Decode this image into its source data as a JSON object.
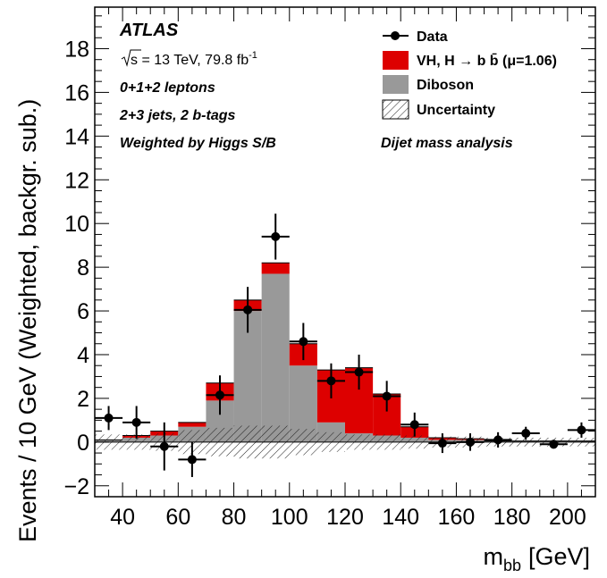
{
  "chart_data": {
    "type": "bar",
    "xlabel": "m",
    "xlabel_sub": "bb",
    "xlabel_unit": "[GeV]",
    "ylabel": "Events / 10 GeV (Weighted, backgr. sub.)",
    "xlim": [
      30,
      210
    ],
    "ylim": [
      -2.5,
      19.9
    ],
    "x_ticks": [
      40,
      60,
      80,
      100,
      120,
      140,
      160,
      180,
      200
    ],
    "y_ticks": [
      -2,
      0,
      2,
      4,
      6,
      8,
      10,
      12,
      14,
      16,
      18
    ],
    "y_tick_labels": [
      "−2",
      "0",
      "2",
      "4",
      "6",
      "8",
      "10",
      "12",
      "14",
      "16",
      "18"
    ],
    "bin_edges": [
      30,
      40,
      50,
      60,
      70,
      80,
      90,
      100,
      110,
      120,
      130,
      140,
      150,
      160,
      170,
      180,
      190,
      200,
      210
    ],
    "series": [
      {
        "name": "Diboson",
        "color": "#999999",
        "values": [
          0.1,
          0.2,
          0.3,
          0.7,
          1.9,
          6.0,
          7.7,
          3.5,
          0.9,
          0.4,
          0.3,
          0.2,
          0.1,
          0.1,
          0.05,
          0.05,
          0.05,
          0.05
        ]
      },
      {
        "name": "VH, H → bb̄ (μ=1.06)",
        "color": "#dd0000",
        "values": [
          0.0,
          0.1,
          0.2,
          0.2,
          0.8,
          0.5,
          0.5,
          1.0,
          2.4,
          3.0,
          1.9,
          0.5,
          0.1,
          0.05,
          0.0,
          0.0,
          0.0,
          0.0
        ]
      }
    ],
    "uncertainty": {
      "name": "Uncertainty",
      "values": [
        0.35,
        0.35,
        0.4,
        0.55,
        0.65,
        0.75,
        0.75,
        0.6,
        0.45,
        0.35,
        0.35,
        0.3,
        0.25,
        0.25,
        0.2,
        0.2,
        0.2,
        0.2
      ]
    },
    "data": {
      "name": "Data",
      "x": [
        35,
        45,
        55,
        65,
        75,
        85,
        95,
        105,
        115,
        125,
        135,
        145,
        155,
        165,
        175,
        185,
        195,
        205
      ],
      "y": [
        1.1,
        0.9,
        -0.2,
        -0.8,
        2.15,
        6.05,
        9.4,
        4.6,
        2.8,
        3.2,
        2.1,
        0.8,
        -0.05,
        0.0,
        0.1,
        0.4,
        -0.1,
        0.55
      ],
      "err": [
        0.55,
        0.75,
        1.1,
        0.8,
        0.9,
        1.05,
        1.05,
        0.85,
        0.8,
        0.8,
        0.7,
        0.55,
        0.45,
        0.4,
        0.35,
        0.3,
        0.2,
        0.35
      ]
    },
    "annotations": {
      "experiment": "ATLAS",
      "energy_prefix": "s",
      "energy_text": " = 13 TeV, 79.8 fb",
      "energy_sup": "-1",
      "line3": "0+1+2 leptons",
      "line4": "2+3 jets, 2 b-tags",
      "line5": "Weighted by Higgs S/B",
      "analysis": "Dijet mass analysis"
    },
    "legend": {
      "placement": "top-right",
      "items": [
        "Data",
        "VH, H  → b b̄ (μ=1.06)",
        "Diboson",
        "Uncertainty"
      ]
    }
  }
}
